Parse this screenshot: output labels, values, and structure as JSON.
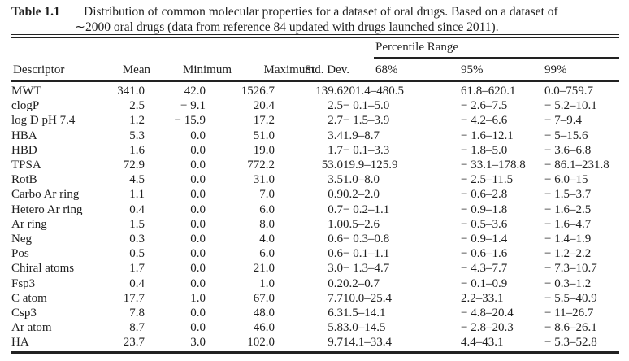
{
  "caption": {
    "label": "Table 1.1",
    "line1": "Distribution of common molecular properties for a dataset of oral drugs. Based on a dataset of",
    "line2": "∼2000 oral drugs (data from reference 84 updated with drugs launched since 2011)."
  },
  "table": {
    "group_header": "Percentile Range",
    "columns": [
      "Descriptor",
      "Mean",
      "Minimum",
      "Maximum",
      "Std. Dev.",
      "68%",
      "95%",
      "99%"
    ],
    "rows": [
      [
        "MWT",
        "341.0",
        "42.0",
        "1526.7",
        "139.6",
        "201.4–480.5",
        "61.8–620.1",
        "0.0–759.7"
      ],
      [
        "clogP",
        "2.5",
        "− 9.1",
        "20.4",
        "2.5",
        "− 0.1–5.0",
        "− 2.6–7.5",
        "− 5.2–10.1"
      ],
      [
        "log D pH 7.4",
        "1.2",
        "− 15.9",
        "17.2",
        "2.7",
        "− 1.5–3.9",
        "− 4.2–6.6",
        "− 7–9.4"
      ],
      [
        "HBA",
        "5.3",
        "0.0",
        "51.0",
        "3.4",
        "1.9–8.7",
        "− 1.6–12.1",
        "− 5–15.6"
      ],
      [
        "HBD",
        "1.6",
        "0.0",
        "19.0",
        "1.7",
        "− 0.1–3.3",
        "− 1.8–5.0",
        "− 3.6–6.8"
      ],
      [
        "TPSA",
        "72.9",
        "0.0",
        "772.2",
        "53.0",
        "19.9–125.9",
        "− 33.1–178.8",
        "− 86.1–231.8"
      ],
      [
        "RotB",
        "4.5",
        "0.0",
        "31.0",
        "3.5",
        "1.0–8.0",
        "− 2.5–11.5",
        "− 6.0–15"
      ],
      [
        "Carbo Ar ring",
        "1.1",
        "0.0",
        "7.0",
        "0.9",
        "0.2–2.0",
        "− 0.6–2.8",
        "− 1.5–3.7"
      ],
      [
        "Hetero Ar ring",
        "0.4",
        "0.0",
        "6.0",
        "0.7",
        "− 0.2–1.1",
        "− 0.9–1.8",
        "− 1.6–2.5"
      ],
      [
        "Ar ring",
        "1.5",
        "0.0",
        "8.0",
        "1.0",
        "0.5–2.6",
        "− 0.5–3.6",
        "− 1.6–4.7"
      ],
      [
        "Neg",
        "0.3",
        "0.0",
        "4.0",
        "0.6",
        "− 0.3–0.8",
        "− 0.9–1.4",
        "− 1.4–1.9"
      ],
      [
        "Pos",
        "0.5",
        "0.0",
        "6.0",
        "0.6",
        "− 0.1–1.1",
        "− 0.6–1.6",
        "− 1.2–2.2"
      ],
      [
        "Chiral atoms",
        "1.7",
        "0.0",
        "21.0",
        "3.0",
        "− 1.3–4.7",
        "− 4.3–7.7",
        "− 7.3–10.7"
      ],
      [
        "Fsp3",
        "0.4",
        "0.0",
        "1.0",
        "0.2",
        "0.2–0.7",
        "− 0.1–0.9",
        "− 0.3–1.2"
      ],
      [
        "C atom",
        "17.7",
        "1.0",
        "67.0",
        "7.7",
        "10.0–25.4",
        "2.2–33.1",
        "− 5.5–40.9"
      ],
      [
        "Csp3",
        "7.8",
        "0.0",
        "48.0",
        "6.3",
        "1.5–14.1",
        "− 4.8–20.4",
        "− 11–26.7"
      ],
      [
        "Ar atom",
        "8.7",
        "0.0",
        "46.0",
        "5.8",
        "3.0–14.5",
        "− 2.8–20.3",
        "− 8.6–26.1"
      ],
      [
        "HA",
        "23.7",
        "3.0",
        "102.0",
        "9.7",
        "14.1–33.4",
        "4.4–43.1",
        "− 5.3–52.8"
      ]
    ]
  },
  "colors": {
    "text": "#1f1f1f",
    "rule": "#222222",
    "background": "#ffffff"
  }
}
